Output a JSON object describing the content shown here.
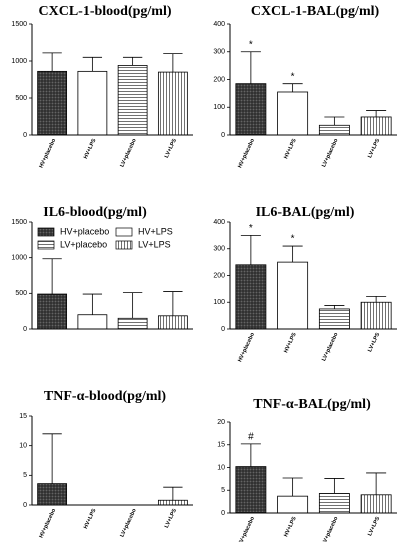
{
  "chart_data": [
    {
      "type": "bar",
      "title": "CXCL-1-blood(pg/ml)",
      "categories": [
        "HV+placebo",
        "HV+LPS",
        "LV+placebo",
        "LV+LPS"
      ],
      "values": [
        860,
        860,
        940,
        850
      ],
      "errors": [
        250,
        190,
        110,
        250
      ],
      "value_markers": [
        null,
        null,
        null,
        null
      ],
      "patterns": [
        "crosshatch",
        "none",
        "horizontal",
        "vertical"
      ],
      "ylim": [
        0,
        1500
      ],
      "yticks": [
        0,
        500,
        1000,
        1500
      ],
      "x_labels": true,
      "legend": null
    },
    {
      "type": "bar",
      "title": "CXCL-1-BAL(pg/ml)",
      "categories": [
        "HV+placebo",
        "HV+LPS",
        "LV+placebo",
        "LV+LPS"
      ],
      "values": [
        185,
        155,
        35,
        65
      ],
      "errors": [
        115,
        30,
        30,
        23
      ],
      "value_markers": [
        "*",
        "*",
        null,
        null
      ],
      "patterns": [
        "crosshatch",
        "none",
        "horizontal",
        "vertical"
      ],
      "ylim": [
        0,
        400
      ],
      "yticks": [
        0,
        100,
        200,
        300,
        400
      ],
      "x_labels": true,
      "legend": null
    },
    {
      "type": "bar",
      "title": "IL6-blood(pg/ml)",
      "categories": [
        "HV+placebo",
        "HV+LPS",
        "LV+placebo",
        "LV+LPS"
      ],
      "values": [
        490,
        200,
        150,
        185
      ],
      "errors": [
        495,
        290,
        360,
        340
      ],
      "value_markers": [
        null,
        null,
        null,
        null
      ],
      "patterns": [
        "crosshatch",
        "none",
        "horizontal",
        "vertical"
      ],
      "ylim": [
        0,
        1500
      ],
      "yticks": [
        0,
        500,
        1000,
        1500
      ],
      "x_labels": false,
      "legend": "top"
    },
    {
      "type": "bar",
      "title": "IL6-BAL(pg/ml)",
      "categories": [
        "HV+placebo",
        "HV+LPS",
        "LV+placebo",
        "LV+LPS"
      ],
      "values": [
        240,
        250,
        75,
        100
      ],
      "errors": [
        110,
        60,
        13,
        22
      ],
      "value_markers": [
        "*",
        "*",
        null,
        null
      ],
      "patterns": [
        "crosshatch",
        "none",
        "horizontal",
        "vertical"
      ],
      "ylim": [
        0,
        400
      ],
      "yticks": [
        0,
        100,
        200,
        300,
        400
      ],
      "x_labels": true,
      "legend": null
    },
    {
      "type": "bar",
      "title": "TNF-α-blood(pg/ml)",
      "categories": [
        "HV+placebo",
        "HV+LPS",
        "LV+placebo",
        "LV+LPS"
      ],
      "values": [
        3.6,
        0,
        0,
        0.8
      ],
      "errors": [
        8.4,
        0,
        0,
        2.2
      ],
      "value_markers": [
        null,
        null,
        null,
        null
      ],
      "patterns": [
        "crosshatch",
        "none",
        "horizontal",
        "vertical"
      ],
      "ylim": [
        0,
        15
      ],
      "yticks": [
        0,
        5,
        10,
        15
      ],
      "x_labels": true,
      "legend": null
    },
    {
      "type": "bar",
      "title": "TNF-α-BAL(pg/ml)",
      "categories": [
        "HV+placebo",
        "HV+LPS",
        "LV+placebo",
        "LV+LPS"
      ],
      "values": [
        10.2,
        3.7,
        4.3,
        4
      ],
      "errors": [
        5,
        4,
        3.3,
        4.8
      ],
      "value_markers": [
        "#",
        null,
        null,
        null
      ],
      "patterns": [
        "crosshatch",
        "none",
        "horizontal",
        "vertical"
      ],
      "ylim": [
        0,
        20
      ],
      "yticks": [
        0,
        5,
        10,
        15,
        20
      ],
      "x_labels": true,
      "legend": null
    }
  ]
}
